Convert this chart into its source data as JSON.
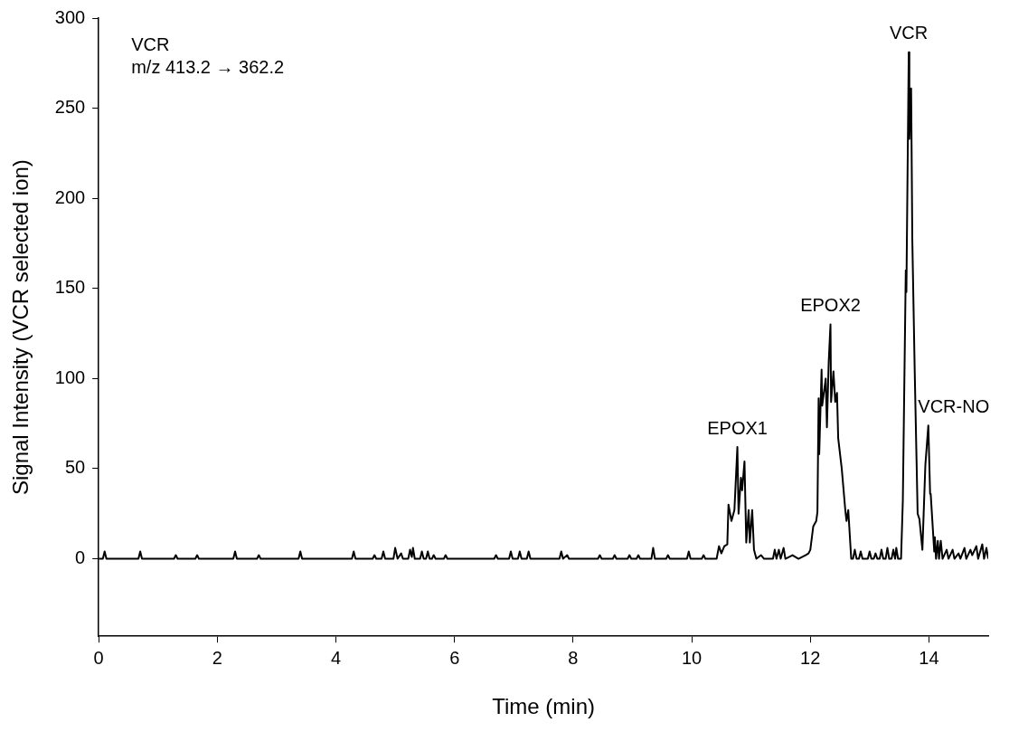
{
  "chart_data": {
    "type": "line",
    "xlabel": "Time (min)",
    "ylabel": "Signal Intensity (VCR selected ion)",
    "xlim": [
      0,
      15
    ],
    "xticks": [
      0,
      2,
      4,
      6,
      8,
      10,
      12,
      14
    ],
    "ylim": [
      -43,
      300
    ],
    "yticks": [
      0,
      50,
      100,
      150,
      200,
      250,
      300
    ],
    "grid": false,
    "legend": false,
    "marker": "none",
    "line_style": "solid",
    "annotations": [
      "VCR",
      "m/z 413.2 → 362.2",
      {
        "text": "EPOX1",
        "x": 10.77,
        "y": 62
      },
      {
        "text": "EPOX2",
        "x": 12.34,
        "y": 130
      },
      {
        "text": "VCR",
        "x": 13.66,
        "y": 281
      },
      {
        "text": "VCR-NO",
        "x": 13.99,
        "y": 74
      }
    ],
    "series": [
      {
        "color": "#000000",
        "x": [
          0,
          0.07,
          0.1,
          0.13,
          0.67,
          0.7,
          0.73,
          1.27,
          1.3,
          1.33,
          1.63,
          1.66,
          1.69,
          2.27,
          2.3,
          2.33,
          2.67,
          2.7,
          2.73,
          3.37,
          3.4,
          3.43,
          4.27,
          4.3,
          4.33,
          4.62,
          4.65,
          4.68,
          4.77,
          4.8,
          4.83,
          4.97,
          5.0,
          5.04,
          5.1,
          5.13,
          5.22,
          5.25,
          5.28,
          5.3,
          5.33,
          5.42,
          5.45,
          5.48,
          5.52,
          5.55,
          5.58,
          5.62,
          5.65,
          5.68,
          5.82,
          5.85,
          5.88,
          6.67,
          6.7,
          6.73,
          6.92,
          6.95,
          6.98,
          7.07,
          7.1,
          7.13,
          7.22,
          7.25,
          7.28,
          7.77,
          7.8,
          7.83,
          7.9,
          7.93,
          8.42,
          8.45,
          8.48,
          8.67,
          8.7,
          8.73,
          8.92,
          8.95,
          8.98,
          9.07,
          9.1,
          9.13,
          9.32,
          9.35,
          9.38,
          9.57,
          9.6,
          9.63,
          9.92,
          9.95,
          9.98,
          10.17,
          10.2,
          10.23,
          10.42,
          10.46,
          10.5,
          10.55,
          10.6,
          10.62,
          10.67,
          10.72,
          10.77,
          10.79,
          10.83,
          10.85,
          10.89,
          10.92,
          10.96,
          10.98,
          11.02,
          11.05,
          11.09,
          11.17,
          11.22,
          11.37,
          11.4,
          11.43,
          11.47,
          11.5,
          11.55,
          11.58,
          11.7,
          11.8,
          11.92,
          11.97,
          12.0,
          12.05,
          12.1,
          12.12,
          12.14,
          12.15,
          12.19,
          12.2,
          12.26,
          12.28,
          12.31,
          12.34,
          12.35,
          12.39,
          12.42,
          12.45,
          12.47,
          12.53,
          12.59,
          12.61,
          12.64,
          12.69,
          12.72,
          12.75,
          12.78,
          12.82,
          12.85,
          12.88,
          12.97,
          13.0,
          13.03,
          13.07,
          13.1,
          13.13,
          13.17,
          13.2,
          13.23,
          13.27,
          13.3,
          13.33,
          13.37,
          13.4,
          13.43,
          13.45,
          13.48,
          13.53,
          13.56,
          13.61,
          13.62,
          13.66,
          13.67,
          13.7,
          13.72,
          13.76,
          13.81,
          13.84,
          13.89,
          13.94,
          13.99,
          14.02,
          14.03,
          14.09,
          14.1,
          14.12,
          14.15,
          14.17,
          14.2,
          14.23,
          14.3,
          14.33,
          14.4,
          14.43,
          14.5,
          14.53,
          14.6,
          14.63,
          14.7,
          14.73,
          14.8,
          14.83,
          14.9,
          14.93,
          14.97,
          15.0
        ],
        "values": [
          0,
          0,
          4,
          0,
          0,
          4,
          0,
          0,
          2,
          0,
          0,
          2,
          0,
          0,
          4,
          0,
          0,
          2,
          0,
          0,
          4,
          0,
          0,
          4,
          0,
          0,
          2,
          0,
          0,
          4,
          0,
          0,
          6,
          0,
          3,
          0,
          0,
          5,
          1,
          6,
          0,
          0,
          4,
          0,
          0,
          4,
          0,
          0,
          2,
          0,
          0,
          2,
          0,
          0,
          2,
          0,
          0,
          4,
          0,
          0,
          4,
          0,
          0,
          4,
          0,
          0,
          4,
          0,
          2,
          0,
          0,
          2,
          0,
          0,
          2,
          0,
          0,
          2,
          0,
          0,
          2,
          0,
          0,
          6,
          0,
          0,
          2,
          0,
          0,
          4,
          0,
          0,
          2,
          0,
          0,
          7,
          3,
          7,
          8,
          30,
          21,
          27,
          62,
          25,
          45,
          38,
          54,
          9,
          27,
          9,
          27,
          5,
          0,
          2,
          0,
          0,
          5,
          0,
          5,
          0,
          6,
          0,
          2,
          0,
          2,
          3,
          5,
          18,
          21,
          26,
          89,
          58,
          105,
          85,
          100,
          73,
          109,
          130,
          87,
          104,
          87,
          92,
          67,
          50,
          27,
          21,
          27,
          0,
          0,
          5,
          0,
          0,
          4,
          0,
          0,
          4,
          0,
          0,
          3,
          0,
          0,
          5,
          0,
          0,
          6,
          0,
          0,
          5,
          0,
          6,
          0,
          0,
          32,
          160,
          148,
          281,
          233,
          261,
          177,
          105,
          25,
          22,
          5,
          52,
          74,
          36,
          36,
          4,
          12,
          0,
          10,
          0,
          10,
          0,
          5,
          0,
          5,
          0,
          3,
          0,
          6,
          0,
          5,
          2,
          7,
          0,
          8,
          0,
          6,
          0
        ]
      }
    ]
  }
}
